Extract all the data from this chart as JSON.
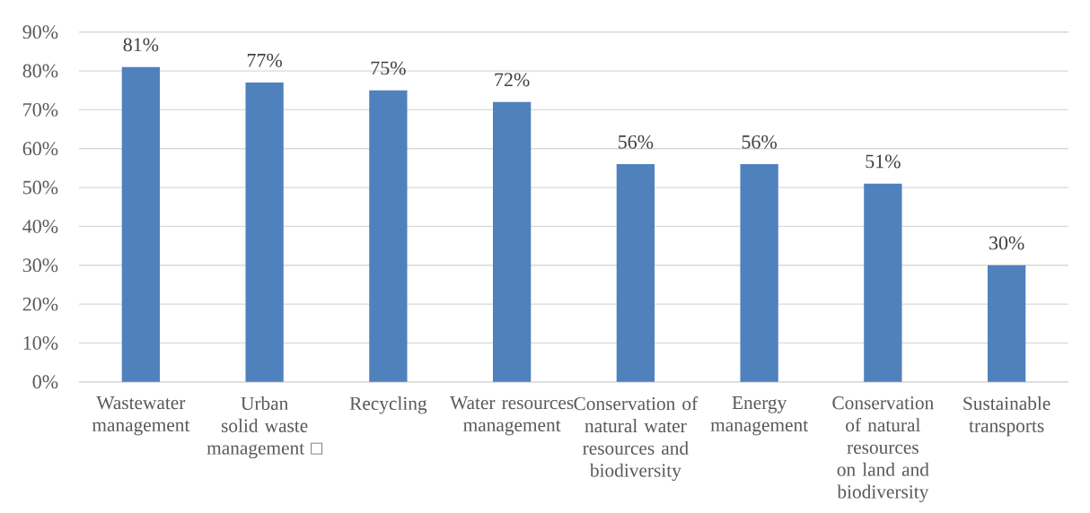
{
  "chart_data": {
    "type": "bar",
    "categories": [
      "Wastewater management",
      "Urban solid waste management □",
      "Recycling",
      "Water resources management",
      "Conservation of natural water resources and biodiversity",
      "Energy management",
      "Conservation of natural resources on land and biodiversity",
      "Sustainable transports"
    ],
    "values": [
      81,
      77,
      75,
      72,
      56,
      56,
      51,
      30
    ],
    "color": "#4f81bd",
    "value_labels": [
      "81%",
      "77%",
      "75%",
      "72%",
      "56%",
      "56%",
      "51%",
      "30%"
    ],
    "ylim": [
      0,
      90
    ],
    "yticks": [
      {
        "value": 0,
        "label": "0%"
      },
      {
        "value": 10,
        "label": "10%"
      },
      {
        "value": 20,
        "label": "20%"
      },
      {
        "value": 30,
        "label": "30%"
      },
      {
        "value": 40,
        "label": "40%"
      },
      {
        "value": 50,
        "label": "50%"
      },
      {
        "value": 60,
        "label": "60%"
      },
      {
        "value": 70,
        "label": "70%"
      },
      {
        "value": 80,
        "label": "80%"
      },
      {
        "value": 90,
        "label": "90%"
      }
    ],
    "grid": "y"
  }
}
